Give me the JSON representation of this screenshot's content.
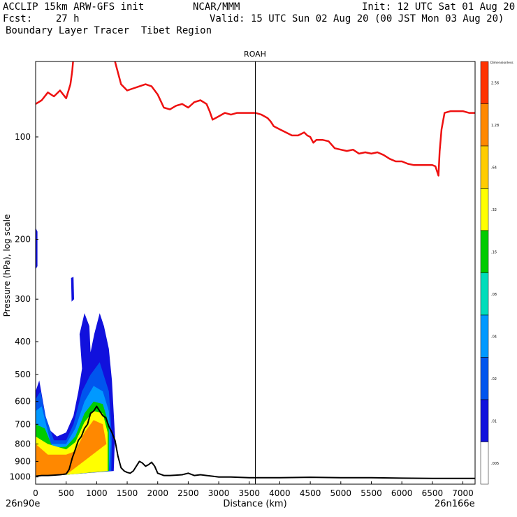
{
  "header": {
    "line1_left": "ACCLIP 15km ARW-GFS init",
    "line1_center": "NCAR/MMM",
    "line1_right": "Init: 12 UTC Sat 01 Aug 20",
    "line2_left": "Fcst:    27 h",
    "line2_right": "Valid: 15 UTC Sun 02 Aug 20 (00 JST Mon 03 Aug 20)",
    "line3_left": "Boundary Layer Tracer  Tibet Region"
  },
  "chart_data": {
    "type": "cross-section",
    "title": "ROAH",
    "xlabel": "Distance (km)",
    "ylabel": "Pressure (hPa), log scale",
    "xlim": [
      0,
      7200
    ],
    "ylim": [
      1050,
      60
    ],
    "x_ticks": [
      0,
      500,
      1000,
      1500,
      2000,
      2500,
      3000,
      3500,
      4000,
      4500,
      5000,
      5500,
      6000,
      6500,
      7000
    ],
    "y_ticks": [
      100,
      200,
      300,
      400,
      500,
      600,
      700,
      800,
      900,
      1000
    ],
    "x_start_label": "26n90e",
    "x_end_label": "26n166e",
    "marker_line_x": 3600,
    "colorbar": {
      "title": "Dimensionless",
      "levels": [
        "2.56",
        "1.28",
        ".64",
        ".32",
        ".16",
        ".08",
        ".04",
        ".02",
        ".01",
        ".005"
      ],
      "colors": [
        "#ff3300",
        "#ff8800",
        "#ffcc00",
        "#ffff00",
        "#00cc00",
        "#00ddbb",
        "#0099ff",
        "#0055ee",
        "#1111dd",
        "#ffffff"
      ]
    },
    "series": [
      {
        "name": "tropopause",
        "color": "#ee1111",
        "x": [
          0,
          100,
          200,
          300,
          400,
          500,
          570,
          600,
          620,
          650,
          700,
          750,
          780,
          850,
          900,
          950,
          1000,
          1050,
          1100,
          1150,
          1200,
          1300,
          1400,
          1500,
          1600,
          1700,
          1800,
          1900,
          2000,
          2100,
          2200,
          2300,
          2400,
          2500,
          2600,
          2700,
          2800,
          2850,
          2900,
          3000,
          3100,
          3200,
          3300,
          3400,
          3500,
          3600,
          3700,
          3800,
          3850,
          3900,
          4000,
          4100,
          4200,
          4300,
          4400,
          4450,
          4500,
          4550,
          4600,
          4700,
          4800,
          4900,
          5000,
          5100,
          5200,
          5300,
          5400,
          5500,
          5600,
          5700,
          5800,
          5900,
          6000,
          6100,
          6200,
          6300,
          6400,
          6500,
          6550,
          6600,
          6620,
          6650,
          6700,
          6800,
          6900,
          7000,
          7100,
          7200
        ],
        "y": [
          80,
          78,
          74,
          76,
          73,
          77,
          70,
          64,
          58,
          55,
          52,
          48,
          47,
          44,
          44,
          46,
          46,
          44,
          45,
          48,
          52,
          60,
          70,
          73,
          72,
          71,
          70,
          71,
          75,
          82,
          83,
          81,
          80,
          82,
          79,
          78,
          80,
          84,
          89,
          87,
          85,
          86,
          85,
          85,
          85,
          85,
          86,
          88,
          90,
          93,
          95,
          97,
          99,
          99,
          97,
          99,
          100,
          104,
          102,
          102,
          103,
          108,
          109,
          110,
          109,
          112,
          111,
          112,
          111,
          113,
          116,
          118,
          118,
          120,
          121,
          121,
          121,
          121,
          122,
          130,
          110,
          95,
          85,
          84,
          84,
          84,
          85,
          85
        ]
      },
      {
        "name": "terrain",
        "color": "#000000",
        "x": [
          0,
          100,
          200,
          300,
          400,
          500,
          550,
          600,
          650,
          700,
          750,
          800,
          850,
          900,
          950,
          1000,
          1050,
          1100,
          1150,
          1200,
          1250,
          1300,
          1350,
          1400,
          1450,
          1500,
          1550,
          1600,
          1650,
          1700,
          1750,
          1800,
          1850,
          1900,
          1950,
          2000,
          2100,
          2200,
          2300,
          2400,
          2500,
          2600,
          2700,
          2800,
          2900,
          3000,
          3200,
          3500,
          4000,
          4500,
          5000,
          5500,
          6000,
          6500,
          7000,
          7200
        ],
        "y": [
          995,
          990,
          990,
          988,
          985,
          980,
          950,
          880,
          830,
          780,
          760,
          720,
          700,
          650,
          640,
          620,
          640,
          660,
          670,
          710,
          740,
          780,
          870,
          940,
          960,
          970,
          975,
          960,
          930,
          900,
          910,
          930,
          920,
          905,
          930,
          975,
          990,
          990,
          988,
          985,
          975,
          990,
          985,
          990,
          995,
          1000,
          1000,
          1005,
          1005,
          1002,
          1005,
          1005,
          1008,
          1010,
          1010,
          1010
        ]
      }
    ]
  }
}
